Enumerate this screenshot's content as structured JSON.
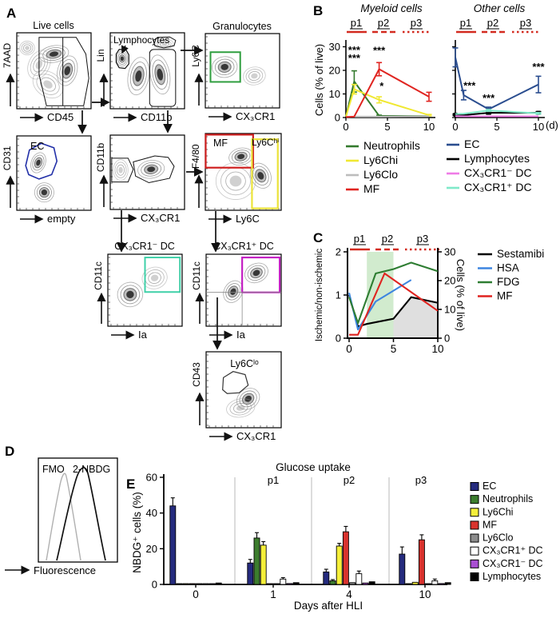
{
  "figure": {
    "background": "#ffffff"
  },
  "panelA": {
    "label": "A",
    "plots": {
      "live": {
        "title": "Live cells",
        "xlabel": "CD45",
        "ylabel": "7AAD"
      },
      "lin": {
        "gate_label": "Lymphocytes",
        "xlabel": "CD11b",
        "ylabel": "Lin"
      },
      "gran": {
        "title": "Granulocytes",
        "xlabel": "CX₃CR1",
        "ylabel": "Ly6C"
      },
      "ec": {
        "gate_label": "EC",
        "xlabel": "empty",
        "ylabel": "CD31"
      },
      "myeloid": {
        "xlabel": "CX₃CR1",
        "ylabel": "CD11b"
      },
      "mf": {
        "gate_label_mf": "MF",
        "gate_label_ly6chi": "Ly6Cʰⁱ",
        "xlabel": "Ly6C",
        "ylabel": "F4/80"
      },
      "dcneg": {
        "title": "CX₃CR1⁻ DC",
        "xlabel": "Ia",
        "ylabel": "CD11c"
      },
      "dcpos": {
        "title": "CX₃CR1⁺ DC",
        "xlabel": "Ia",
        "ylabel": "CD11c"
      },
      "ly6clo": {
        "gate_label": "Ly6Cˡᵒ",
        "xlabel": "CX₃CR1",
        "ylabel": "CD43"
      }
    }
  },
  "panelB": {
    "label": "B",
    "title_left": "Myeloid cells",
    "title_right": "Other cells",
    "ylabel": "Cells (% of live)",
    "x_unit": "(d)"
  },
  "panelC": {
    "label": "C",
    "ylabel_left": "Ischemic/non-ischemic",
    "ylabel_right": "Cells (% of live)"
  },
  "panelD": {
    "label": "D",
    "curve_label_1": "FMO",
    "curve_label_2": "2-NBDG",
    "xlabel": "Fluorescence"
  },
  "panelE": {
    "label": "E",
    "title": "Glucose uptake",
    "ylabel": "NBDG⁺ cells (%)",
    "xlabel": "Days after HLI"
  },
  "phases": [
    {
      "label": "p1",
      "style": "solid"
    },
    {
      "label": "p2",
      "style": "dashed"
    },
    {
      "label": "p3",
      "style": "dotted"
    }
  ],
  "chart_data": [
    {
      "id": "myeloid_cells",
      "type": "line",
      "title": "Myeloid cells",
      "x": [
        0,
        1,
        4,
        10
      ],
      "xticks": [
        0,
        5,
        10
      ],
      "yticks": [
        0,
        10,
        20,
        30
      ],
      "ylim": [
        0,
        33
      ],
      "ylabel": "Cells (% of live)",
      "xunit": "d",
      "series": [
        {
          "name": "Neutrophils",
          "color": "#337a2d",
          "values": [
            0.3,
            15.3,
            0.7,
            0.6
          ],
          "err": [
            0.2,
            4.5,
            0.3,
            0.2
          ]
        },
        {
          "name": "Ly6Chi",
          "color": "#f0e832",
          "values": [
            0.4,
            12.0,
            7.5,
            1.0
          ],
          "err": [
            0.2,
            2.0,
            1.3,
            0.3
          ]
        },
        {
          "name": "Ly6Clo",
          "color": "#bdbdbd",
          "values": [
            0.3,
            0.4,
            0.4,
            0.5
          ],
          "err": [
            0.1,
            0.1,
            0.1,
            0.1
          ]
        },
        {
          "name": "MF",
          "color": "#e02420",
          "values": [
            0.2,
            0.4,
            20.5,
            8.8
          ],
          "err": [
            0.1,
            0.2,
            2.8,
            1.9
          ]
        }
      ],
      "annotations": [
        {
          "x": 1,
          "y": 27.2,
          "text": "***"
        },
        {
          "x": 1,
          "y": 23.7,
          "text": "***"
        },
        {
          "x": 4,
          "y": 27.0,
          "text": "***"
        },
        {
          "x": 4.3,
          "y": 11.8,
          "text": "*"
        }
      ]
    },
    {
      "id": "other_cells",
      "type": "line",
      "title": "Other cells",
      "x": [
        0,
        1,
        4,
        10
      ],
      "xticks": [
        0,
        5,
        10
      ],
      "yticks": [
        0,
        10,
        20,
        30
      ],
      "ylim": [
        0,
        33
      ],
      "series": [
        {
          "name": "EC",
          "color": "#2a4d8f",
          "values": [
            25.5,
            9.5,
            3.5,
            14.0
          ],
          "err": [
            4.0,
            2.0,
            0.9,
            3.5
          ]
        },
        {
          "name": "Lymphocytes",
          "color": "#000000",
          "marker": "square",
          "values": [
            1.2,
            1.0,
            2.0,
            2.0
          ],
          "err": [
            0.3,
            0.3,
            0.5,
            0.5
          ]
        },
        {
          "name": "CX₃CR1⁻ DC",
          "color": "#ef7be6",
          "values": [
            0.6,
            0.5,
            0.5,
            0.5
          ],
          "err": [
            0.1,
            0.1,
            0.1,
            0.1
          ]
        },
        {
          "name": "CX₃CR1⁺ DC",
          "color": "#7fe9c9",
          "values": [
            1.5,
            1.6,
            3.0,
            1.8
          ],
          "err": [
            0.2,
            0.2,
            0.4,
            0.3
          ]
        }
      ],
      "annotations": [
        {
          "x": 1.7,
          "y": 12.0,
          "text": "***"
        },
        {
          "x": 4,
          "y": 6.8,
          "text": "***"
        },
        {
          "x": 10,
          "y": 20.0,
          "text": "***"
        }
      ]
    },
    {
      "id": "tracer_uptake",
      "type": "line-dual",
      "ylabel_left": "Ischemic/non-ischemic",
      "ylabel_right": "Cells (% of live)",
      "yticks_left": [
        0,
        1,
        2
      ],
      "yticks_right": [
        0,
        10,
        20,
        30
      ],
      "xticks": [
        0,
        5,
        10
      ],
      "ylim_left": [
        0,
        2
      ],
      "ylim_right": [
        0,
        30
      ],
      "series": [
        {
          "name": "Sestamibi",
          "color": "#000000",
          "axis": "left",
          "x": [
            0,
            1,
            2,
            5,
            7,
            10
          ],
          "y": [
            1.0,
            0.27,
            0.33,
            0.45,
            0.95,
            0.82
          ]
        },
        {
          "name": "HSA",
          "color": "#3d85e0",
          "axis": "left",
          "x": [
            0,
            1,
            3,
            5,
            7
          ],
          "y": [
            1.05,
            0.2,
            0.85,
            1.1,
            1.35
          ]
        },
        {
          "name": "FDG",
          "color": "#2e7d32",
          "axis": "left",
          "x": [
            0,
            1,
            3,
            5,
            7,
            10
          ],
          "y": [
            0.95,
            0.35,
            1.5,
            1.6,
            1.75,
            1.55
          ]
        },
        {
          "name": "MF",
          "color": "#e02420",
          "axis": "right",
          "x": [
            0,
            1,
            4,
            10
          ],
          "y": [
            1.2,
            1.2,
            22.5,
            9.5
          ]
        }
      ],
      "bands": [
        {
          "kind": "vband",
          "x0": 2,
          "x1": 5,
          "color": "#c9e7c6"
        },
        {
          "kind": "area-under-sestamibi",
          "x0": 5,
          "x1": 10,
          "color": "#dcdcdc"
        }
      ]
    },
    {
      "id": "glucose_uptake",
      "type": "bar",
      "title": "Glucose uptake",
      "categories": [
        0,
        1,
        4,
        10
      ],
      "xlabel": "Days after HLI",
      "ylabel": "NBDG⁺ cells (%)",
      "yticks": [
        0,
        20,
        40,
        60
      ],
      "ylim": [
        0,
        60
      ],
      "series": [
        {
          "name": "EC",
          "color": "#252b7e",
          "values": [
            44.0,
            12.0,
            7.0,
            17.0
          ],
          "err": [
            4.5,
            2.0,
            1.5,
            4.0
          ]
        },
        {
          "name": "Neutrophils",
          "color": "#3c7d2e",
          "values": [
            0.4,
            26.0,
            2.0,
            0.4
          ],
          "err": [
            0.2,
            3.0,
            0.7,
            0.2
          ]
        },
        {
          "name": "Ly6Chi",
          "color": "#f5ef3a",
          "values": [
            0.4,
            22.0,
            21.5,
            1.2
          ],
          "err": [
            0.2,
            2.0,
            1.5,
            0.4
          ]
        },
        {
          "name": "MF",
          "color": "#d9332e",
          "values": [
            0.3,
            0.4,
            29.5,
            25.0
          ],
          "err": [
            0.2,
            0.2,
            3.0,
            2.8
          ]
        },
        {
          "name": "Ly6Clo",
          "color": "#8c8c8c",
          "values": [
            0.3,
            0.4,
            1.0,
            0.4
          ],
          "err": [
            0.2,
            0.2,
            0.4,
            0.2
          ]
        },
        {
          "name": "CX₃CR1⁺ DC",
          "color": "#ffffff",
          "values": [
            0.4,
            3.0,
            6.0,
            2.0
          ],
          "err": [
            0.2,
            0.8,
            1.5,
            1.0
          ]
        },
        {
          "name": "CX₃CR1⁻ DC",
          "color": "#a94fd2",
          "values": [
            0.4,
            0.5,
            0.8,
            0.5
          ],
          "err": [
            0.2,
            0.2,
            0.3,
            0.2
          ]
        },
        {
          "name": "Lymphocytes",
          "color": "#000000",
          "values": [
            0.8,
            1.0,
            1.5,
            1.0
          ],
          "err": [
            0.3,
            0.3,
            0.5,
            0.3
          ]
        }
      ]
    },
    {
      "id": "nbdg_histogram",
      "type": "histogram",
      "xlabel": "Fluorescence",
      "series": [
        {
          "name": "FMO",
          "color": "#b0b0b0"
        },
        {
          "name": "2-NBDG",
          "color": "#111111"
        }
      ]
    }
  ]
}
